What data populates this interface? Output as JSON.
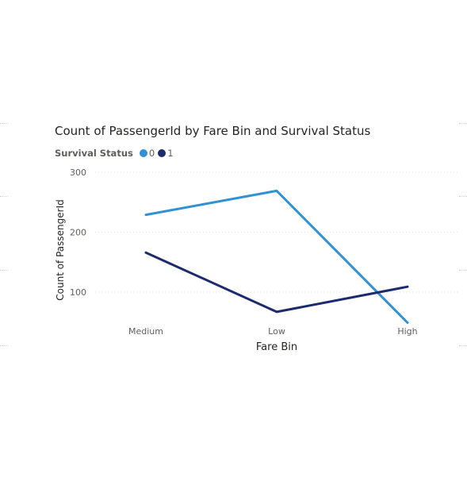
{
  "chart_data": {
    "type": "line",
    "title": "Count of PassengerId by Fare Bin and Survival Status",
    "xlabel": "Fare Bin",
    "ylabel": "Count of PassengerId",
    "categories": [
      "Medium",
      "Low",
      "High"
    ],
    "yticks": [
      100,
      200,
      300
    ],
    "ylim": [
      50,
      300
    ],
    "grid": true,
    "legend": {
      "title": "Survival Status",
      "placement": "top-left"
    },
    "series": [
      {
        "name": "0",
        "values": [
          229,
          269,
          49
        ],
        "color": "#3191d3"
      },
      {
        "name": "1",
        "values": [
          166,
          67,
          109
        ],
        "color": "#1c2b6d"
      }
    ]
  }
}
